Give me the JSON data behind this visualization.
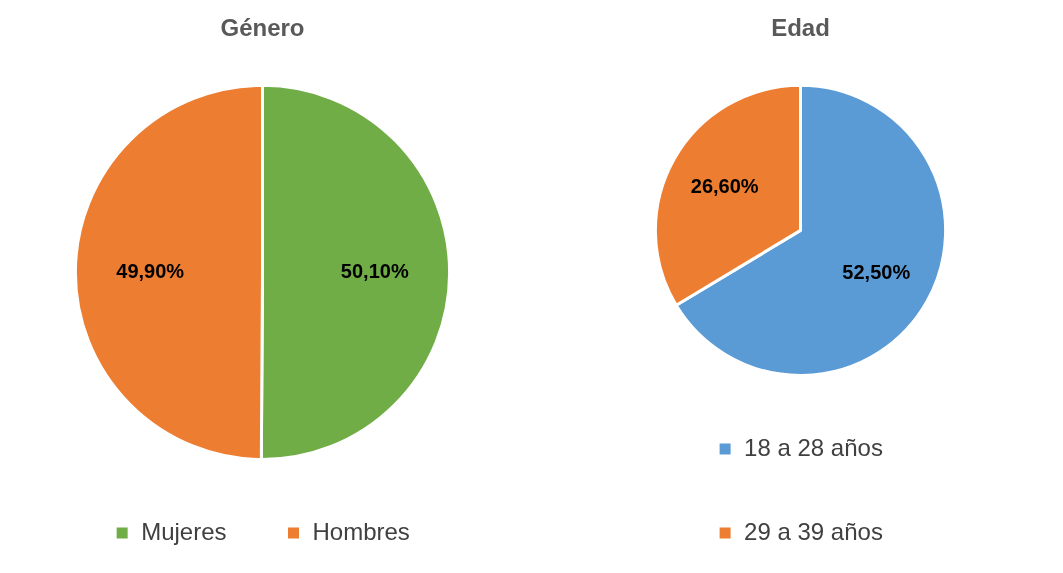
{
  "chart_data": [
    {
      "type": "pie",
      "title": "Género",
      "categories": [
        "Mujeres",
        "Hombres"
      ],
      "values": [
        50.1,
        49.9
      ],
      "colors": [
        "#70ad47",
        "#ed7d31"
      ],
      "value_labels": [
        "50,10%",
        "49,90%"
      ],
      "legend": "bottom"
    },
    {
      "type": "pie",
      "title": "Edad",
      "categories": [
        "18 a 28 años",
        "29 a 39 años"
      ],
      "values": [
        52.5,
        26.6
      ],
      "colors": [
        "#5b9bd5",
        "#ed7d31"
      ],
      "value_labels": [
        "52,50%",
        "26,60%"
      ],
      "legend": "bottom"
    }
  ]
}
